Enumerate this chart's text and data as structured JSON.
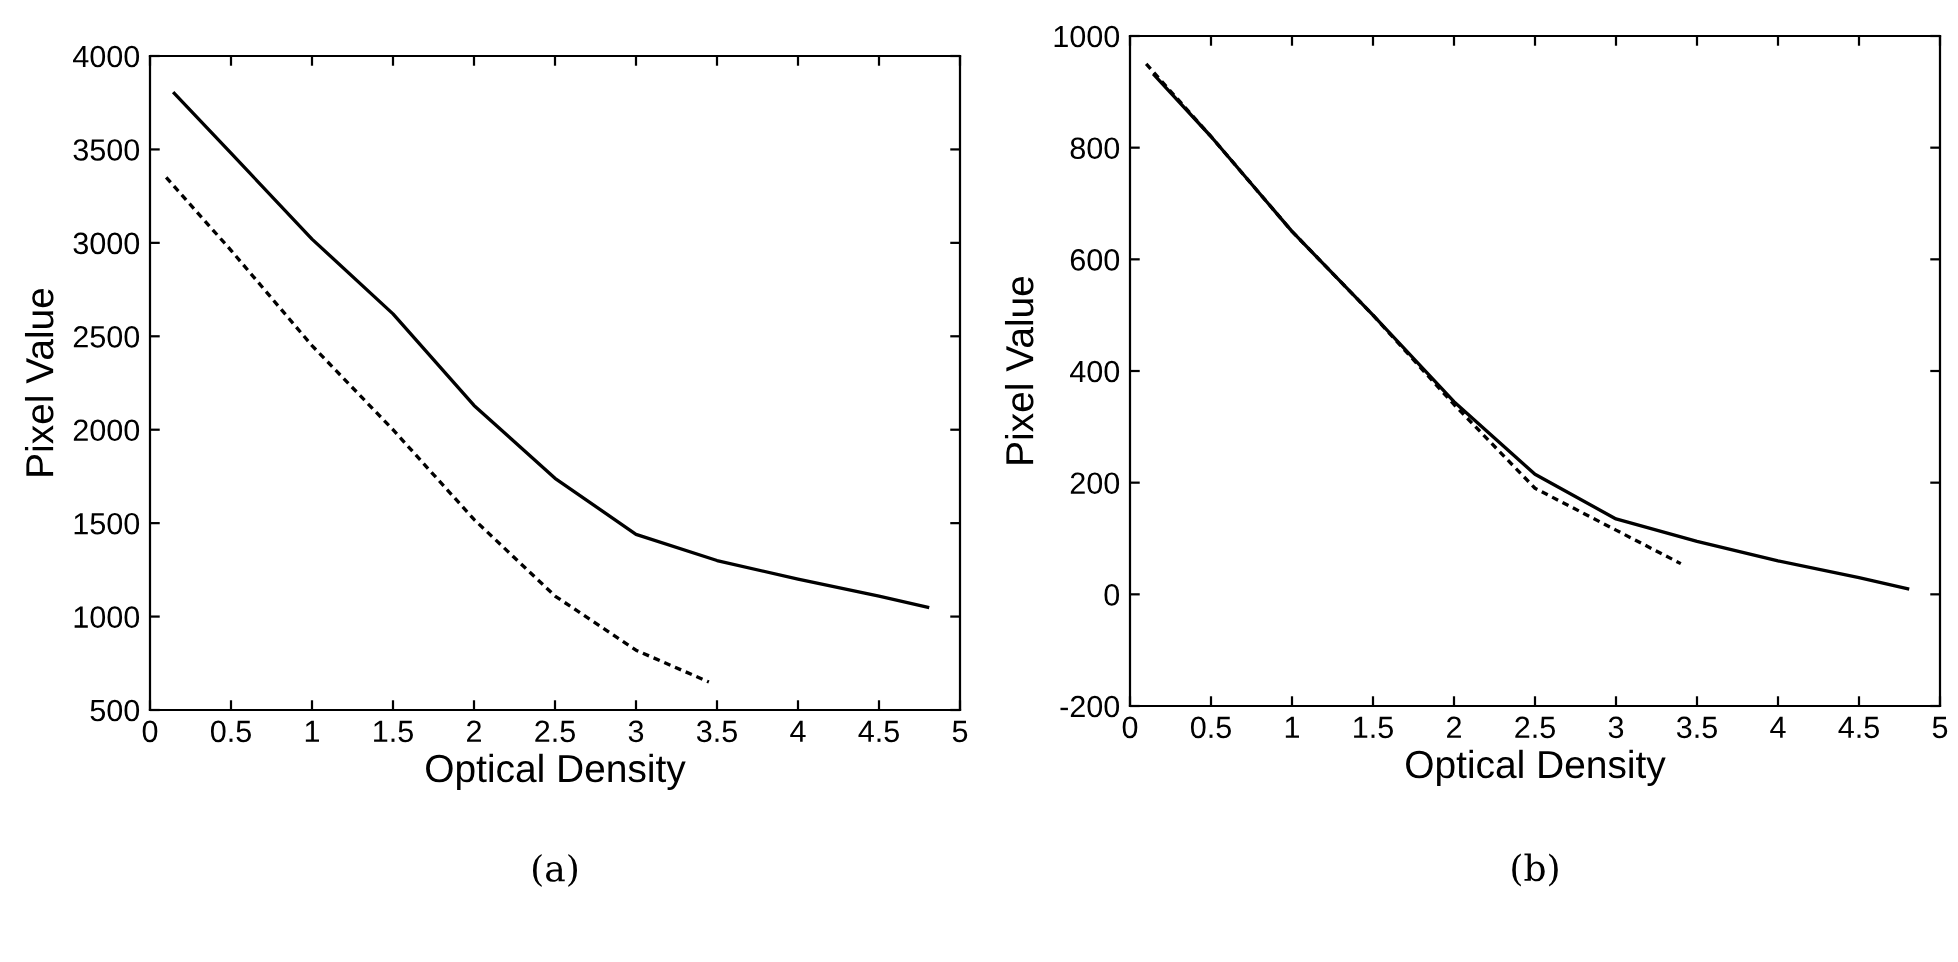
{
  "chart_data": [
    {
      "type": "line",
      "xlabel": "Optical Density",
      "ylabel": "Pixel Value",
      "annotations": [
        "(a)"
      ],
      "xlim": [
        0,
        5
      ],
      "ylim": [
        500,
        4000
      ],
      "xticks": [
        0,
        0.5,
        1,
        1.5,
        2,
        2.5,
        3,
        3.5,
        4,
        4.5,
        5
      ],
      "yticks": [
        500,
        1000,
        1500,
        2000,
        2500,
        3000,
        3500,
        4000
      ],
      "grid": false,
      "series": [
        {
          "color": "#000000",
          "line_style": "solid",
          "x": [
            0.15,
            0.5,
            1,
            1.5,
            2,
            2.5,
            3,
            3.5,
            4,
            4.5,
            4.8
          ],
          "values": [
            3800,
            3480,
            3020,
            2620,
            2130,
            1740,
            1440,
            1300,
            1200,
            1110,
            1050
          ]
        },
        {
          "color": "#000000",
          "line_style": "dashed",
          "x": [
            0.1,
            0.5,
            1,
            1.5,
            2,
            2.5,
            3,
            3.45
          ],
          "values": [
            3350,
            2960,
            2450,
            2000,
            1520,
            1110,
            820,
            650
          ]
        }
      ]
    },
    {
      "type": "line",
      "xlabel": "Optical Density",
      "ylabel": "Pixel Value",
      "annotations": [
        "(b)"
      ],
      "xlim": [
        0,
        5
      ],
      "ylim": [
        -200,
        1000
      ],
      "xticks": [
        0,
        0.5,
        1,
        1.5,
        2,
        2.5,
        3,
        3.5,
        4,
        4.5,
        5
      ],
      "yticks": [
        -200,
        0,
        200,
        400,
        600,
        800,
        1000
      ],
      "grid": false,
      "series": [
        {
          "color": "#000000",
          "line_style": "solid",
          "x": [
            0.15,
            0.5,
            1,
            1.5,
            2,
            2.5,
            3,
            3.5,
            4,
            4.5,
            4.8
          ],
          "values": [
            930,
            820,
            650,
            500,
            345,
            215,
            135,
            95,
            60,
            30,
            10
          ]
        },
        {
          "color": "#000000",
          "line_style": "dashed",
          "x": [
            0.1,
            0.5,
            1,
            1.5,
            2,
            2.5,
            3,
            3.4
          ],
          "values": [
            950,
            820,
            650,
            500,
            340,
            190,
            115,
            55
          ]
        }
      ]
    }
  ]
}
